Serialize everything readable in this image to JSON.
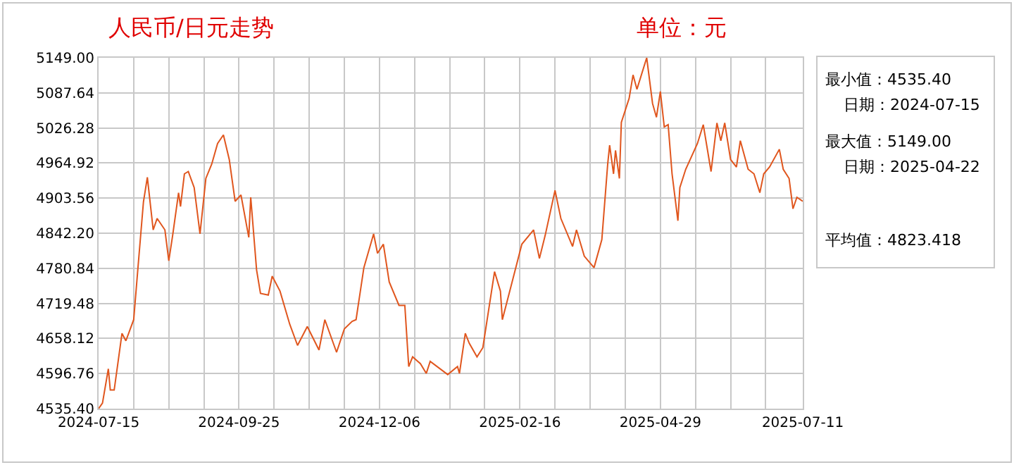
{
  "chart_data": {
    "type": "line",
    "title": "人民币/日元走势",
    "subtitle": "单位：元",
    "annotations": [
      "最小值：4535.40",
      "日期：2024-07-15",
      "最大值：5149.00",
      "日期：2025-04-22",
      "平均值：4823.418"
    ],
    "x": [
      "2024-07-15",
      "2024-07-17",
      "2024-07-20",
      "2024-07-21",
      "2024-07-23",
      "2024-07-27",
      "2024-07-29",
      "2024-08-02",
      "2024-08-04",
      "2024-08-07",
      "2024-08-09",
      "2024-08-12",
      "2024-08-14",
      "2024-08-18",
      "2024-08-20",
      "2024-08-22",
      "2024-08-25",
      "2024-08-26",
      "2024-08-28",
      "2024-08-30",
      "2024-09-02",
      "2024-09-05",
      "2024-09-08",
      "2024-09-11",
      "2024-09-14",
      "2024-09-17",
      "2024-09-20",
      "2024-09-23",
      "2024-09-26",
      "2024-09-30",
      "2024-10-01",
      "2024-10-04",
      "2024-10-06",
      "2024-10-10",
      "2024-10-12",
      "2024-10-16",
      "2024-10-21",
      "2024-10-25",
      "2024-10-30",
      "2024-11-05",
      "2024-11-08",
      "2024-11-14",
      "2024-11-18",
      "2024-11-22",
      "2024-11-24",
      "2024-11-28",
      "2024-12-03",
      "2024-12-05",
      "2024-12-08",
      "2024-12-11",
      "2024-12-16",
      "2024-12-19",
      "2024-12-21",
      "2024-12-23",
      "2024-12-27",
      "2024-12-30",
      "2025-01-01",
      "2025-01-10",
      "2025-01-15",
      "2025-01-16",
      "2025-01-19",
      "2025-01-21",
      "2025-01-25",
      "2025-01-28",
      "2025-02-03",
      "2025-02-06",
      "2025-02-07",
      "2025-02-12",
      "2025-02-17",
      "2025-02-23",
      "2025-02-26",
      "2025-03-01",
      "2025-03-06",
      "2025-03-09",
      "2025-03-15",
      "2025-03-17",
      "2025-03-21",
      "2025-03-26",
      "2025-03-30",
      "2025-04-02",
      "2025-04-03",
      "2025-04-05",
      "2025-04-06",
      "2025-04-08",
      "2025-04-09",
      "2025-04-13",
      "2025-04-15",
      "2025-04-17",
      "2025-04-22",
      "2025-04-25",
      "2025-04-27",
      "2025-04-29",
      "2025-05-01",
      "2025-05-03",
      "2025-05-05",
      "2025-05-08",
      "2025-05-09",
      "2025-05-12",
      "2025-05-18",
      "2025-05-21",
      "2025-05-25",
      "2025-05-28",
      "2025-05-30",
      "2025-06-01",
      "2025-06-04",
      "2025-06-07",
      "2025-06-09",
      "2025-06-13",
      "2025-06-16",
      "2025-06-19",
      "2025-06-21",
      "2025-06-24",
      "2025-06-29",
      "2025-07-01",
      "2025-07-04",
      "2025-07-06",
      "2025-07-08",
      "2025-07-11"
    ],
    "series": [
      {
        "color": "#e0561e",
        "values": [
          4535.4,
          4545,
          4605,
          4568,
          4568,
          4667,
          4654,
          4691,
          4774,
          4897,
          4940,
          4848,
          4868,
          4848,
          4794,
          4839,
          4913,
          4889,
          4946,
          4950,
          4922,
          4841,
          4938,
          4963,
          4999,
          5014,
          4971,
          4898,
          4909,
          4835,
          4905,
          4778,
          4737,
          4734,
          4767,
          4741,
          4683,
          4646,
          4679,
          4638,
          4691,
          4634,
          4675,
          4688,
          4691,
          4782,
          4841,
          4807,
          4823,
          4757,
          4716,
          4716,
          4609,
          4626,
          4614,
          4597,
          4618,
          4595,
          4609,
          4597,
          4667,
          4650,
          4626,
          4642,
          4775,
          4741,
          4691,
          4757,
          4823,
          4848,
          4798,
          4839,
          4917,
          4868,
          4819,
          4848,
          4802,
          4782,
          4831,
          4963,
          4996,
          4946,
          4987,
          4938,
          5036,
          5078,
          5119,
          5094,
          5149,
          5069,
          5045,
          5090,
          5028,
          5032,
          4946,
          4864,
          4922,
          4954,
          4999,
          5032,
          4950,
          5035,
          5004,
          5035,
          4971,
          4958,
          5004,
          4954,
          4946,
          4913,
          4946,
          4958,
          4989,
          4954,
          4938,
          4885,
          4905,
          4898
        ]
      }
    ],
    "xlim": [
      "2024-07-15",
      "2025-07-11"
    ],
    "xticks": [
      {
        "value": "2024-07-15",
        "label": "2024-07-15"
      },
      {
        "value": "2024-08-02",
        "label": null
      },
      {
        "value": "2024-08-20",
        "label": null
      },
      {
        "value": "2024-09-07",
        "label": null
      },
      {
        "value": "2024-09-25",
        "label": "2024-09-25"
      },
      {
        "value": "2024-10-13",
        "label": null
      },
      {
        "value": "2024-10-31",
        "label": null
      },
      {
        "value": "2024-11-18",
        "label": null
      },
      {
        "value": "2024-12-06",
        "label": "2024-12-06"
      },
      {
        "value": "2024-12-24",
        "label": null
      },
      {
        "value": "2025-01-11",
        "label": null
      },
      {
        "value": "2025-01-29",
        "label": null
      },
      {
        "value": "2025-02-16",
        "label": "2025-02-16"
      },
      {
        "value": "2025-03-06",
        "label": null
      },
      {
        "value": "2025-03-24",
        "label": null
      },
      {
        "value": "2025-04-11",
        "label": null
      },
      {
        "value": "2025-04-29",
        "label": "2025-04-29"
      },
      {
        "value": "2025-05-17",
        "label": null
      },
      {
        "value": "2025-06-04",
        "label": null
      },
      {
        "value": "2025-06-22",
        "label": null
      },
      {
        "value": "2025-07-11",
        "label": "2025-07-11"
      }
    ],
    "ylim": [
      4535.4,
      5149.0
    ],
    "yticks": [
      {
        "value": 4535.4,
        "label": "4535.40"
      },
      {
        "value": 4596.76,
        "label": "4596.76"
      },
      {
        "value": 4658.12,
        "label": "4658.12"
      },
      {
        "value": 4719.48,
        "label": "4719.48"
      },
      {
        "value": 4780.84,
        "label": "4780.84"
      },
      {
        "value": 4842.2,
        "label": "4842.20"
      },
      {
        "value": 4903.56,
        "label": "4903.56"
      },
      {
        "value": 4964.92,
        "label": "4964.92"
      },
      {
        "value": 5026.28,
        "label": "5026.28"
      },
      {
        "value": 5087.64,
        "label": "5087.64"
      },
      {
        "value": 5149.0,
        "label": "5149.00"
      }
    ],
    "grid": true,
    "marker": "none",
    "line_style": "solid"
  }
}
